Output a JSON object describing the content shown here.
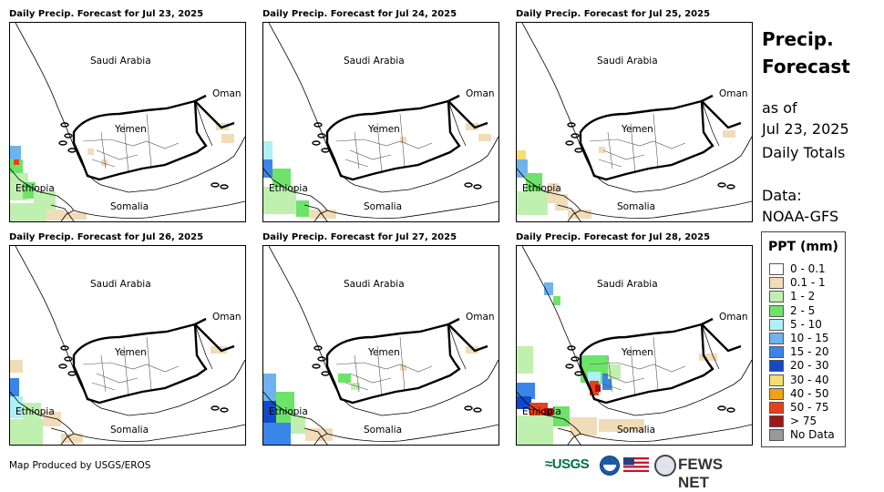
{
  "panels": [
    {
      "title": "Daily Precip. Forecast for Jul 23, 2025"
    },
    {
      "title": "Daily Precip. Forecast for Jul 24, 2025"
    },
    {
      "title": "Daily Precip. Forecast for Jul 25, 2025"
    },
    {
      "title": "Daily Precip. Forecast for Jul 26, 2025"
    },
    {
      "title": "Daily Precip. Forecast for Jul 27, 2025"
    },
    {
      "title": "Daily Precip. Forecast for Jul 28, 2025"
    }
  ],
  "map_labels": {
    "saudi": "Saudi Arabia",
    "oman": "Oman",
    "yemen": "Yemen",
    "ethiopia": "Ethiopia",
    "somalia": "Somalia"
  },
  "side": {
    "title_line1": "Precip.",
    "title_line2": "Forecast",
    "asof_line1": "as of",
    "asof_line2": "Jul 23, 2025",
    "totals": "Daily Totals",
    "data_line1": "Data:",
    "data_line2": "NOAA-GFS"
  },
  "legend": {
    "title": "PPT (mm)",
    "items": [
      {
        "label": "0 - 0.1",
        "color": "#ffffff"
      },
      {
        "label": "0.1 - 1",
        "color": "#f1dcb9"
      },
      {
        "label": "1 - 2",
        "color": "#bff0b0"
      },
      {
        "label": "2 - 5",
        "color": "#6ee36a"
      },
      {
        "label": "5 - 10",
        "color": "#aef0f5"
      },
      {
        "label": "10 - 15",
        "color": "#6fb3ee"
      },
      {
        "label": "15 - 20",
        "color": "#3a86e8"
      },
      {
        "label": "20 - 30",
        "color": "#1249c8"
      },
      {
        "label": "30 - 40",
        "color": "#f5dc74"
      },
      {
        "label": "40 - 50",
        "color": "#f0a21c"
      },
      {
        "label": "50 - 75",
        "color": "#e8401a"
      },
      {
        "label": "> 75",
        "color": "#a01616"
      },
      {
        "label": "No Data",
        "color": "#999999"
      }
    ]
  },
  "footer": {
    "credit": "Map Produced by USGS/EROS"
  },
  "logos": {
    "usgs": "≈USGS",
    "fews": "FEWS NET"
  }
}
